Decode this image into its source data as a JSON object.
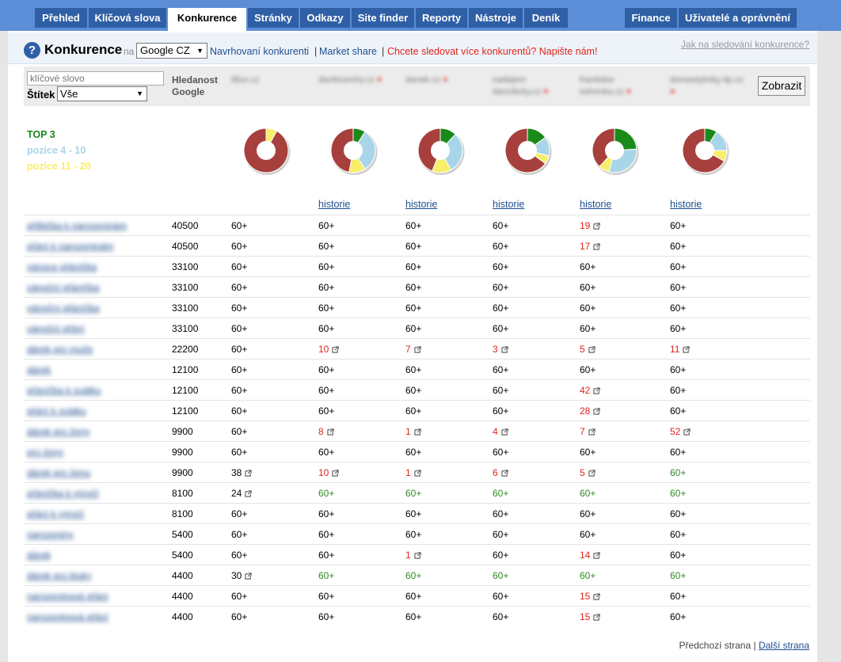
{
  "nav": {
    "tabs": [
      "Přehled",
      "Klíčová slova",
      "Konkurence",
      "Stránky",
      "Odkazy",
      "Site finder",
      "Reporty",
      "Nástroje",
      "Deník"
    ],
    "right_tabs": [
      "Finance",
      "Uživatelé a oprávnění"
    ],
    "active": "Konkurence"
  },
  "header": {
    "title": "Konkurence",
    "na": "na",
    "engine": "Google CZ",
    "link_suggested": "Navrhovaní konkurenti",
    "sep": "|",
    "link_market": "Market share",
    "link_more": "Chcete sledovat více konkurentů? Napište nám!",
    "help_link": "Jak na sledování konkurence?"
  },
  "filter": {
    "keyword_placeholder": "klíčové slovo",
    "tag_label": "Štítek",
    "tag_value": "Vše",
    "search_volume_label": "Hledanost Google",
    "competitors": [
      "lillux.cz",
      "danfocentry.cz",
      "danek.cz",
      "nadejem dancilicky.cz",
      "frantiska-eshonka.cz",
      "domestytniky-lip.cz"
    ],
    "remove_mark": "×",
    "show_button": "Zobrazit"
  },
  "legend": {
    "top3": "TOP 3",
    "pos4_10": "pozice 4 - 10",
    "pos11_20": "pozice 11 - 20"
  },
  "colors": {
    "top3": "#1a8a1a",
    "pos4_10": "#a8d6e8",
    "pos11_20": "#f7ee6a",
    "rest": "#a7403c"
  },
  "chart_data": {
    "type": "pie",
    "charts": [
      {
        "top3": 0,
        "pos4_10": 0,
        "pos11_20": 8,
        "rest": 92
      },
      {
        "top3": 9,
        "pos4_10": 32,
        "pos11_20": 12,
        "rest": 47
      },
      {
        "top3": 12,
        "pos4_10": 30,
        "pos11_20": 14,
        "rest": 44
      },
      {
        "top3": 15,
        "pos4_10": 14,
        "pos11_20": 6,
        "rest": 65
      },
      {
        "top3": 24,
        "pos4_10": 30,
        "pos11_20": 8,
        "rest": 38
      },
      {
        "top3": 9,
        "pos4_10": 16,
        "pos11_20": 8,
        "rest": 67
      }
    ]
  },
  "history_label": "historie",
  "rows": [
    {
      "kw": "přilbička k narozeninám",
      "vol": "40500",
      "cells": [
        [
          "60+",
          "b"
        ],
        [
          "60+",
          "b"
        ],
        [
          "60+",
          "b"
        ],
        [
          "60+",
          "b"
        ],
        [
          "19",
          "r",
          1
        ],
        [
          "60+",
          "b"
        ]
      ]
    },
    {
      "kw": "přání k narozeninám",
      "vol": "40500",
      "cells": [
        [
          "60+",
          "b"
        ],
        [
          "60+",
          "b"
        ],
        [
          "60+",
          "b"
        ],
        [
          "60+",
          "b"
        ],
        [
          "17",
          "r",
          1
        ],
        [
          "60+",
          "b"
        ]
      ]
    },
    {
      "kw": "vánoce přáníčka",
      "vol": "33100",
      "cells": [
        [
          "60+",
          "b"
        ],
        [
          "60+",
          "b"
        ],
        [
          "60+",
          "b"
        ],
        [
          "60+",
          "b"
        ],
        [
          "60+",
          "b"
        ],
        [
          "60+",
          "b"
        ]
      ]
    },
    {
      "kw": "vánoční přáníčka",
      "vol": "33100",
      "cells": [
        [
          "60+",
          "b"
        ],
        [
          "60+",
          "b"
        ],
        [
          "60+",
          "b"
        ],
        [
          "60+",
          "b"
        ],
        [
          "60+",
          "b"
        ],
        [
          "60+",
          "b"
        ]
      ]
    },
    {
      "kw": "vánoční přáníčka",
      "vol": "33100",
      "cells": [
        [
          "60+",
          "b"
        ],
        [
          "60+",
          "b"
        ],
        [
          "60+",
          "b"
        ],
        [
          "60+",
          "b"
        ],
        [
          "60+",
          "b"
        ],
        [
          "60+",
          "b"
        ]
      ]
    },
    {
      "kw": "vánoční přání",
      "vol": "33100",
      "cells": [
        [
          "60+",
          "b"
        ],
        [
          "60+",
          "b"
        ],
        [
          "60+",
          "b"
        ],
        [
          "60+",
          "b"
        ],
        [
          "60+",
          "b"
        ],
        [
          "60+",
          "b"
        ]
      ]
    },
    {
      "kw": "dárek pro muže",
      "vol": "22200",
      "cells": [
        [
          "60+",
          "b"
        ],
        [
          "10",
          "r",
          1
        ],
        [
          "7",
          "r",
          1
        ],
        [
          "3",
          "r",
          1
        ],
        [
          "5",
          "r",
          1
        ],
        [
          "11",
          "r",
          1
        ]
      ]
    },
    {
      "kw": "dárek",
      "vol": "12100",
      "cells": [
        [
          "60+",
          "b"
        ],
        [
          "60+",
          "b"
        ],
        [
          "60+",
          "b"
        ],
        [
          "60+",
          "b"
        ],
        [
          "60+",
          "b"
        ],
        [
          "60+",
          "b"
        ]
      ]
    },
    {
      "kw": "přáníčka k svátku",
      "vol": "12100",
      "cells": [
        [
          "60+",
          "b"
        ],
        [
          "60+",
          "b"
        ],
        [
          "60+",
          "b"
        ],
        [
          "60+",
          "b"
        ],
        [
          "42",
          "r",
          1
        ],
        [
          "60+",
          "b"
        ]
      ]
    },
    {
      "kw": "přání k svátku",
      "vol": "12100",
      "cells": [
        [
          "60+",
          "b"
        ],
        [
          "60+",
          "b"
        ],
        [
          "60+",
          "b"
        ],
        [
          "60+",
          "b"
        ],
        [
          "28",
          "r",
          1
        ],
        [
          "60+",
          "b"
        ]
      ]
    },
    {
      "kw": "dárek pro ženy",
      "vol": "9900",
      "cells": [
        [
          "60+",
          "b"
        ],
        [
          "8",
          "r",
          1
        ],
        [
          "1",
          "r",
          1
        ],
        [
          "4",
          "r",
          1
        ],
        [
          "7",
          "r",
          1
        ],
        [
          "52",
          "r",
          1
        ]
      ]
    },
    {
      "kw": "pro ženy",
      "vol": "9900",
      "cells": [
        [
          "60+",
          "b"
        ],
        [
          "60+",
          "b"
        ],
        [
          "60+",
          "b"
        ],
        [
          "60+",
          "b"
        ],
        [
          "60+",
          "b"
        ],
        [
          "60+",
          "b"
        ]
      ]
    },
    {
      "kw": "dárek pro ženu",
      "vol": "9900",
      "cells": [
        [
          "38",
          "b",
          1
        ],
        [
          "10",
          "r",
          1
        ],
        [
          "1",
          "r",
          1
        ],
        [
          "6",
          "r",
          1
        ],
        [
          "5",
          "r",
          1
        ],
        [
          "60+",
          "g"
        ]
      ]
    },
    {
      "kw": "přáníčka k výročí",
      "vol": "8100",
      "cells": [
        [
          "24",
          "b",
          1
        ],
        [
          "60+",
          "g"
        ],
        [
          "60+",
          "g"
        ],
        [
          "60+",
          "g"
        ],
        [
          "60+",
          "g"
        ],
        [
          "60+",
          "g"
        ]
      ]
    },
    {
      "kw": "přání k výročí",
      "vol": "8100",
      "cells": [
        [
          "60+",
          "b"
        ],
        [
          "60+",
          "b"
        ],
        [
          "60+",
          "b"
        ],
        [
          "60+",
          "b"
        ],
        [
          "60+",
          "b"
        ],
        [
          "60+",
          "b"
        ]
      ]
    },
    {
      "kw": "narozeniny",
      "vol": "5400",
      "cells": [
        [
          "60+",
          "b"
        ],
        [
          "60+",
          "b"
        ],
        [
          "60+",
          "b"
        ],
        [
          "60+",
          "b"
        ],
        [
          "60+",
          "b"
        ],
        [
          "60+",
          "b"
        ]
      ]
    },
    {
      "kw": "dárek",
      "vol": "5400",
      "cells": [
        [
          "60+",
          "b"
        ],
        [
          "60+",
          "b"
        ],
        [
          "1",
          "r",
          1
        ],
        [
          "60+",
          "b"
        ],
        [
          "14",
          "r",
          1
        ],
        [
          "60+",
          "b"
        ]
      ]
    },
    {
      "kw": "dárek pro kluky",
      "vol": "4400",
      "cells": [
        [
          "30",
          "b",
          1
        ],
        [
          "60+",
          "g"
        ],
        [
          "60+",
          "g"
        ],
        [
          "60+",
          "g"
        ],
        [
          "60+",
          "g"
        ],
        [
          "60+",
          "g"
        ]
      ]
    },
    {
      "kw": "narozeninová přání",
      "vol": "4400",
      "cells": [
        [
          "60+",
          "b"
        ],
        [
          "60+",
          "b"
        ],
        [
          "60+",
          "b"
        ],
        [
          "60+",
          "b"
        ],
        [
          "15",
          "r",
          1
        ],
        [
          "60+",
          "b"
        ]
      ]
    },
    {
      "kw": "narozeninová přání",
      "vol": "4400",
      "cells": [
        [
          "60+",
          "b"
        ],
        [
          "60+",
          "b"
        ],
        [
          "60+",
          "b"
        ],
        [
          "60+",
          "b"
        ],
        [
          "15",
          "r",
          1
        ],
        [
          "60+",
          "b"
        ]
      ]
    }
  ],
  "pager": {
    "prev": "Předchozí strana",
    "sep": "|",
    "next": "Další strana"
  }
}
